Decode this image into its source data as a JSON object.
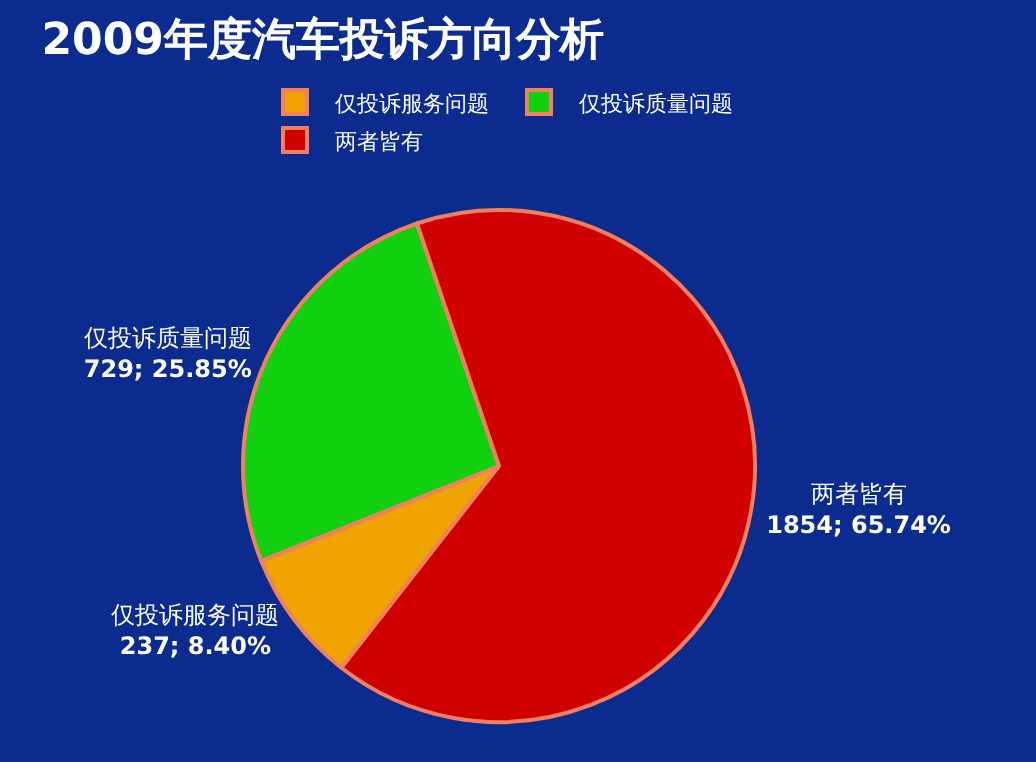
{
  "chart_data": {
    "type": "pie",
    "title": "2009年度汽车投诉方向分析",
    "categories": [
      "仅投诉服务问题",
      "仅投诉质量问题",
      "两者皆有"
    ],
    "values": [
      237,
      729,
      1854
    ],
    "value_labels": [
      "237; 8.40%",
      "729; 25.85%",
      "1854; 65.74%"
    ],
    "colors": [
      "#f0a400",
      "#10d010",
      "#d00000"
    ],
    "legend": "top"
  }
}
